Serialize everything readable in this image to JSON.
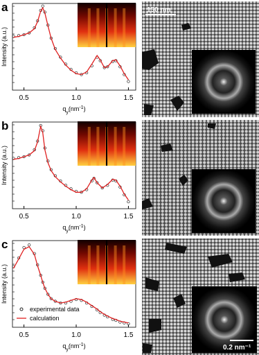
{
  "chart_data": [
    {
      "type": "line",
      "panel": "a",
      "y_label": "Intensity (a.u.)",
      "x_label_parts": [
        "q",
        "y",
        "(nm",
        "-1",
        ")"
      ],
      "xlim": [
        0.39,
        1.57
      ],
      "xticks": [
        0.5,
        {
          "value": 1.0,
          "label": "1.0"
        },
        1.5
      ],
      "ylim": [
        0,
        1
      ],
      "log_scale_y": true,
      "x": [
        0.4,
        0.45,
        0.5,
        0.55,
        0.6,
        0.63,
        0.66,
        0.68,
        0.7,
        0.73,
        0.76,
        0.8,
        0.85,
        0.9,
        0.95,
        1.0,
        1.05,
        1.1,
        1.15,
        1.2,
        1.23,
        1.27,
        1.3,
        1.35,
        1.38,
        1.42,
        1.46,
        1.5
      ],
      "series": [
        {
          "color": "#222222",
          "marker": "open-circle",
          "values": [
            0.62,
            0.63,
            0.64,
            0.66,
            0.72,
            0.8,
            0.92,
            0.97,
            0.9,
            0.75,
            0.6,
            0.48,
            0.38,
            0.3,
            0.24,
            0.2,
            0.18,
            0.2,
            0.28,
            0.38,
            0.34,
            0.26,
            0.27,
            0.33,
            0.34,
            0.27,
            0.18,
            0.1
          ]
        },
        {
          "color": "#e02020",
          "marker": "line",
          "values": [
            0.61,
            0.62,
            0.64,
            0.66,
            0.71,
            0.79,
            0.91,
            0.95,
            0.89,
            0.74,
            0.6,
            0.47,
            0.37,
            0.29,
            0.23,
            0.19,
            0.18,
            0.21,
            0.3,
            0.4,
            0.35,
            0.26,
            0.27,
            0.34,
            0.35,
            0.28,
            0.19,
            0.12
          ]
        }
      ]
    },
    {
      "type": "line",
      "panel": "b",
      "y_label": "Intensity (a.u.)",
      "x_label_parts": [
        "q",
        "y",
        "(nm",
        "-1",
        ")"
      ],
      "xlim": [
        0.39,
        1.57
      ],
      "xticks": [
        0.5,
        {
          "value": 1.0,
          "label": "1.0"
        },
        1.5
      ],
      "ylim": [
        0,
        1
      ],
      "log_scale_y": true,
      "x": [
        0.4,
        0.45,
        0.5,
        0.55,
        0.6,
        0.63,
        0.66,
        0.68,
        0.7,
        0.73,
        0.76,
        0.8,
        0.85,
        0.9,
        0.95,
        1.0,
        1.05,
        1.1,
        1.15,
        1.17,
        1.2,
        1.25,
        1.3,
        1.35,
        1.38,
        1.42,
        1.46,
        1.5
      ],
      "series": [
        {
          "color": "#222222",
          "marker": "open-circle",
          "values": [
            0.58,
            0.59,
            0.6,
            0.62,
            0.68,
            0.78,
            0.96,
            0.9,
            0.7,
            0.55,
            0.45,
            0.38,
            0.32,
            0.27,
            0.23,
            0.2,
            0.19,
            0.22,
            0.32,
            0.35,
            0.3,
            0.24,
            0.27,
            0.33,
            0.32,
            0.25,
            0.16,
            0.08
          ]
        },
        {
          "color": "#e02020",
          "marker": "line",
          "values": [
            0.57,
            0.58,
            0.6,
            0.62,
            0.67,
            0.77,
            0.95,
            0.88,
            0.68,
            0.53,
            0.44,
            0.37,
            0.31,
            0.26,
            0.22,
            0.19,
            0.19,
            0.23,
            0.33,
            0.36,
            0.3,
            0.24,
            0.28,
            0.34,
            0.33,
            0.26,
            0.17,
            0.1
          ]
        }
      ]
    },
    {
      "type": "line",
      "panel": "c",
      "y_label": "Intensity (a.u.)",
      "x_label_parts": [
        "q",
        "y",
        "(nm",
        "-1",
        ")"
      ],
      "xlim": [
        0.39,
        1.57
      ],
      "xticks": [
        0.5,
        {
          "value": 1.0,
          "label": "1.0"
        },
        1.5
      ],
      "ylim": [
        0,
        1
      ],
      "log_scale_y": true,
      "legend": "lower left",
      "x": [
        0.4,
        0.45,
        0.5,
        0.55,
        0.6,
        0.63,
        0.66,
        0.68,
        0.7,
        0.73,
        0.76,
        0.8,
        0.85,
        0.9,
        0.95,
        1.0,
        1.05,
        1.1,
        1.15,
        1.2,
        1.23,
        1.27,
        1.3,
        1.35,
        1.38,
        1.42,
        1.46,
        1.5
      ],
      "series": [
        {
          "name": "experimental data",
          "color": "#222222",
          "marker": "open-circle",
          "values": [
            0.7,
            0.8,
            0.92,
            0.95,
            0.85,
            0.72,
            0.6,
            0.52,
            0.45,
            0.38,
            0.33,
            0.3,
            0.28,
            0.28,
            0.3,
            0.32,
            0.31,
            0.28,
            0.24,
            0.2,
            0.17,
            0.14,
            0.12,
            0.09,
            0.08,
            0.06,
            0.05,
            0.04
          ]
        },
        {
          "name": "calculation",
          "color": "#e02020",
          "marker": "line",
          "values": [
            0.68,
            0.79,
            0.9,
            0.93,
            0.84,
            0.71,
            0.6,
            0.52,
            0.45,
            0.38,
            0.33,
            0.3,
            0.28,
            0.29,
            0.31,
            0.33,
            0.32,
            0.29,
            0.25,
            0.21,
            0.18,
            0.15,
            0.13,
            0.1,
            0.09,
            0.07,
            0.06,
            0.05
          ]
        }
      ]
    }
  ],
  "images": {
    "scale_bar_sem": "150 nm",
    "scale_bar_fft": "0.2 nm⁻¹"
  }
}
